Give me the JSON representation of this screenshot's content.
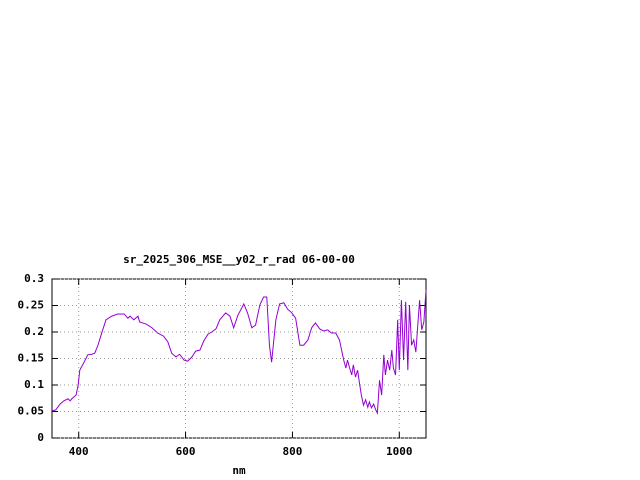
{
  "chart_data": {
    "type": "line",
    "title": "sr_2025_306_MSE__y02_r_rad 06-00-00",
    "x_label": "nm",
    "color": "#9400d3",
    "grid": true,
    "xlim": [
      350,
      1050
    ],
    "ylim": [
      0,
      0.3
    ],
    "xticks": [
      400,
      600,
      800,
      1000
    ],
    "yticks": [
      0,
      0.05,
      0.1,
      0.15,
      0.2,
      0.25,
      0.3
    ],
    "x": [
      350,
      357,
      365,
      372,
      380,
      384,
      387,
      395,
      399,
      402,
      410,
      417,
      425,
      430,
      436,
      443,
      451,
      462,
      473,
      485,
      492,
      496,
      503,
      511,
      514,
      526,
      537,
      548,
      559,
      567,
      574,
      582,
      589,
      597,
      604,
      612,
      619,
      627,
      634,
      642,
      649,
      657,
      664,
      675,
      683,
      690,
      698,
      705,
      709,
      716,
      724,
      731,
      739,
      746,
      752,
      757,
      761,
      769,
      776,
      784,
      791,
      799,
      806,
      814,
      821,
      829,
      836,
      843,
      851,
      858,
      866,
      873,
      881,
      888,
      896,
      900,
      903,
      907,
      911,
      914,
      918,
      922,
      926,
      929,
      933,
      937,
      941,
      944,
      948,
      952,
      956,
      959,
      963,
      967,
      971,
      974,
      978,
      982,
      986,
      989,
      993,
      997,
      1000,
      1004,
      1008,
      1012,
      1016,
      1019,
      1023,
      1027,
      1031,
      1034,
      1038,
      1042,
      1046,
      1050
    ],
    "values": [
      0.051,
      0.053,
      0.064,
      0.07,
      0.074,
      0.07,
      0.074,
      0.081,
      0.1,
      0.128,
      0.143,
      0.157,
      0.158,
      0.16,
      0.175,
      0.198,
      0.223,
      0.23,
      0.234,
      0.234,
      0.226,
      0.23,
      0.223,
      0.23,
      0.219,
      0.215,
      0.208,
      0.198,
      0.192,
      0.181,
      0.16,
      0.153,
      0.158,
      0.147,
      0.145,
      0.153,
      0.164,
      0.166,
      0.183,
      0.196,
      0.2,
      0.206,
      0.223,
      0.236,
      0.23,
      0.208,
      0.232,
      0.245,
      0.253,
      0.236,
      0.208,
      0.213,
      0.251,
      0.266,
      0.266,
      0.175,
      0.143,
      0.223,
      0.253,
      0.255,
      0.243,
      0.236,
      0.226,
      0.175,
      0.175,
      0.185,
      0.208,
      0.217,
      0.206,
      0.202,
      0.204,
      0.198,
      0.198,
      0.185,
      0.147,
      0.132,
      0.147,
      0.132,
      0.119,
      0.138,
      0.115,
      0.128,
      0.1,
      0.081,
      0.062,
      0.072,
      0.058,
      0.068,
      0.057,
      0.064,
      0.053,
      0.047,
      0.109,
      0.081,
      0.157,
      0.119,
      0.147,
      0.128,
      0.166,
      0.132,
      0.119,
      0.223,
      0.128,
      0.26,
      0.147,
      0.257,
      0.128,
      0.251,
      0.175,
      0.185,
      0.162,
      0.204,
      0.26,
      0.204,
      0.219,
      0.279
    ]
  }
}
